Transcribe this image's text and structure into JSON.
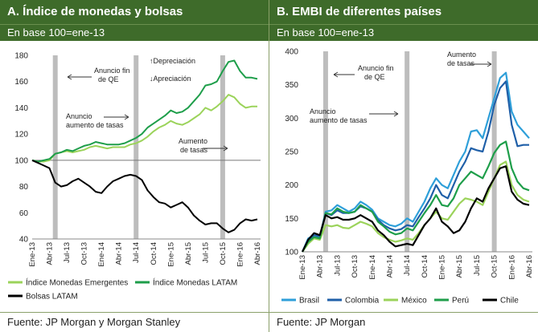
{
  "panels": [
    {
      "title": "A. Índice de monedas y bolsas",
      "subtitle": "En base 100=ene-13",
      "source": "Fuente: JP Morgan y Morgan Stanley"
    },
    {
      "title": "B. EMBI de diferentes países",
      "subtitle": "En base 100=ene-13",
      "source": "Fuente: JP Morgan"
    }
  ],
  "chart_data": [
    {
      "type": "line",
      "title": "A. Índice de monedas y bolsas",
      "subtitle": "En base 100=ene-13",
      "ylim": [
        40,
        180
      ],
      "yticks": [
        40,
        60,
        80,
        100,
        120,
        140,
        160,
        180
      ],
      "xlabels": [
        "Ene-13",
        "Abr-13",
        "Jul-13",
        "Oct-13",
        "Ene-14",
        "Abr-14",
        "Jul-14",
        "Oct-14",
        "Ene-15",
        "Abr-15",
        "Jul-15",
        "Oct-15",
        "Ene-16",
        "Abr-16"
      ],
      "x_count": 40,
      "reference_line": 100,
      "event_bars": [
        4,
        18,
        33
      ],
      "series": [
        {
          "name": "Índice Monedas Emergentes",
          "color": "#9bd35a",
          "values": [
            100,
            99,
            99,
            100,
            105,
            106,
            107,
            106,
            107,
            108,
            110,
            111,
            110,
            109,
            110,
            110,
            110,
            112,
            113,
            115,
            118,
            122,
            125,
            127,
            130,
            128,
            127,
            129,
            132,
            135,
            140,
            138,
            141,
            145,
            150,
            148,
            143,
            140,
            141,
            141
          ]
        },
        {
          "name": "Índice Monedas LATAM",
          "color": "#1e9e4a",
          "values": [
            100,
            99,
            100,
            101,
            105,
            106,
            108,
            107,
            109,
            111,
            112,
            114,
            113,
            112,
            112,
            112,
            113,
            115,
            117,
            120,
            125,
            128,
            131,
            134,
            138,
            136,
            137,
            140,
            145,
            150,
            157,
            158,
            160,
            168,
            175,
            176,
            168,
            163,
            163,
            162
          ]
        },
        {
          "name": "Bolsas LATAM",
          "color": "#000000",
          "values": [
            100,
            98,
            96,
            94,
            83,
            80,
            81,
            84,
            86,
            83,
            80,
            76,
            75,
            80,
            84,
            86,
            88,
            89,
            88,
            85,
            77,
            72,
            68,
            67,
            64,
            66,
            68,
            64,
            58,
            54,
            51,
            52,
            52,
            48,
            45,
            47,
            52,
            55,
            54,
            55
          ]
        }
      ],
      "annotations": [
        {
          "text": "Anuncio  fin",
          "text2": "de QE"
        },
        {
          "text": "↑Depreciación"
        },
        {
          "text": "↓Apreciación"
        },
        {
          "text": "Anuncio",
          "text2": "aumento de tasas"
        },
        {
          "text": "Aumento",
          "text2": "de tasas"
        }
      ]
    },
    {
      "type": "line",
      "title": "B. EMBI de diferentes países",
      "subtitle": "En base 100=ene-13",
      "ylim": [
        100,
        400
      ],
      "yticks": [
        100,
        150,
        200,
        250,
        300,
        350,
        400
      ],
      "xlabels": [
        "Ene-13",
        "Abr-13",
        "Jul-13",
        "Oct-13",
        "Ene-14",
        "Abr-14",
        "Jul-14",
        "Oct-14",
        "Ene-15",
        "Abr-15",
        "Jul-15",
        "Oct-15",
        "Ene-16",
        "Abr-16"
      ],
      "x_count": 40,
      "event_bars": [
        4,
        18,
        33
      ],
      "series": [
        {
          "name": "Brasil",
          "color": "#2e9fd9",
          "values": [
            100,
            120,
            125,
            122,
            160,
            162,
            170,
            165,
            160,
            165,
            175,
            170,
            163,
            150,
            145,
            140,
            138,
            142,
            150,
            145,
            160,
            175,
            195,
            210,
            200,
            195,
            215,
            235,
            250,
            280,
            282,
            270,
            300,
            330,
            360,
            368,
            310,
            290,
            280,
            270
          ]
        },
        {
          "name": "Colombia",
          "color": "#1f5fa8",
          "values": [
            100,
            115,
            125,
            123,
            158,
            155,
            162,
            158,
            158,
            160,
            168,
            165,
            160,
            148,
            140,
            135,
            132,
            134,
            140,
            138,
            152,
            165,
            180,
            200,
            185,
            180,
            200,
            220,
            235,
            255,
            252,
            250,
            280,
            320,
            345,
            355,
            290,
            258,
            260,
            260
          ]
        },
        {
          "name": "México",
          "color": "#9bd35a",
          "values": [
            100,
            112,
            120,
            118,
            140,
            138,
            140,
            136,
            135,
            140,
            145,
            142,
            138,
            128,
            122,
            118,
            115,
            117,
            120,
            118,
            128,
            140,
            150,
            160,
            150,
            148,
            160,
            172,
            180,
            178,
            175,
            170,
            190,
            210,
            230,
            235,
            200,
            185,
            178,
            175
          ]
        },
        {
          "name": "Perú",
          "color": "#1e9e4a",
          "values": [
            100,
            115,
            122,
            120,
            158,
            156,
            165,
            160,
            158,
            160,
            170,
            165,
            160,
            145,
            138,
            130,
            126,
            128,
            135,
            132,
            145,
            158,
            170,
            185,
            170,
            168,
            180,
            200,
            210,
            220,
            215,
            210,
            228,
            248,
            260,
            265,
            225,
            205,
            195,
            192
          ]
        },
        {
          "name": "Chile",
          "color": "#000000",
          "values": [
            100,
            118,
            128,
            125,
            155,
            150,
            152,
            148,
            148,
            150,
            155,
            150,
            145,
            132,
            125,
            115,
            108,
            110,
            112,
            110,
            125,
            140,
            150,
            165,
            145,
            138,
            128,
            132,
            145,
            165,
            180,
            175,
            195,
            210,
            225,
            228,
            190,
            178,
            172,
            170
          ]
        }
      ],
      "annotations": [
        {
          "text": "Anuncio  fin",
          "text2": "de QE"
        },
        {
          "text": "Anuncio",
          "text2": "aumento de tasas"
        },
        {
          "text": "Aumento",
          "text2": "de tasas"
        }
      ]
    }
  ]
}
